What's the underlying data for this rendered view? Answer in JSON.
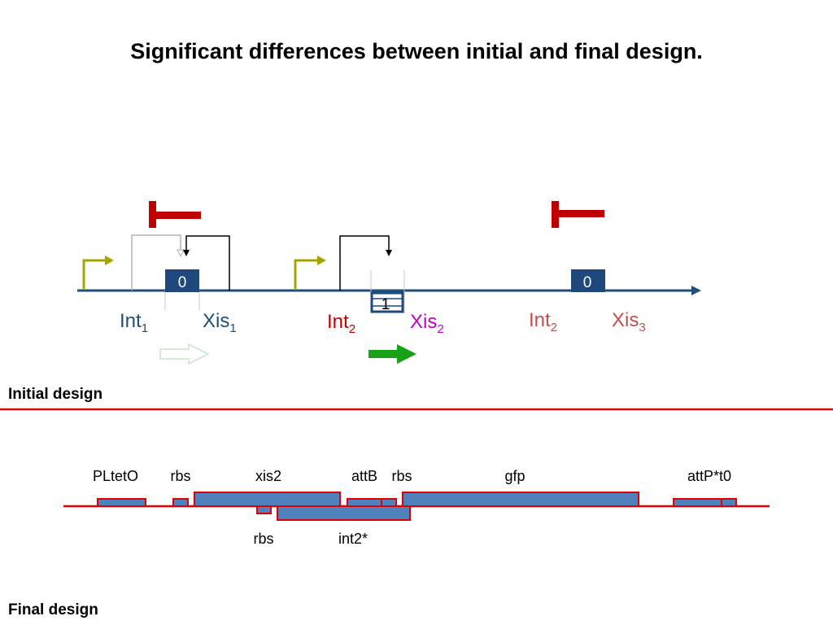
{
  "title": "Significant differences between initial and final design.",
  "colors": {
    "backbone": "#1f4e79",
    "repressor": "#c00000",
    "promoter": "#a5a500",
    "site_box": "#1f497d",
    "int1": "#1f4e79",
    "xis1": "#1f4e79",
    "int2_active": "#c00000",
    "xis2": "#c000c0",
    "int2_inactive": "#c0504d",
    "xis3": "#c0504d",
    "gfp_arrow": "#16a116",
    "gfp_arrow_faded": "#d9f0d9",
    "separator": "#e00000",
    "part_fill": "#4f81bd",
    "part_border": "#e00000"
  },
  "initial_design": {
    "label": "Initial design",
    "box_labels": [
      "0",
      "1",
      "0"
    ],
    "genes": {
      "int1": {
        "name": "Int",
        "sub": "1"
      },
      "xis1": {
        "name": "Xis",
        "sub": "1"
      },
      "int2a": {
        "name": "Int",
        "sub": "2"
      },
      "xis2": {
        "name": "Xis",
        "sub": "2"
      },
      "int2b": {
        "name": "Int",
        "sub": "2"
      },
      "xis3": {
        "name": "Xis",
        "sub": "3"
      }
    }
  },
  "final_design": {
    "label": "Final design",
    "parts_top": [
      "PLtetO",
      "rbs",
      "xis2",
      "attB",
      "rbs",
      "gfp",
      "attP*t0"
    ],
    "parts_bottom": [
      "rbs",
      "int2*"
    ]
  }
}
